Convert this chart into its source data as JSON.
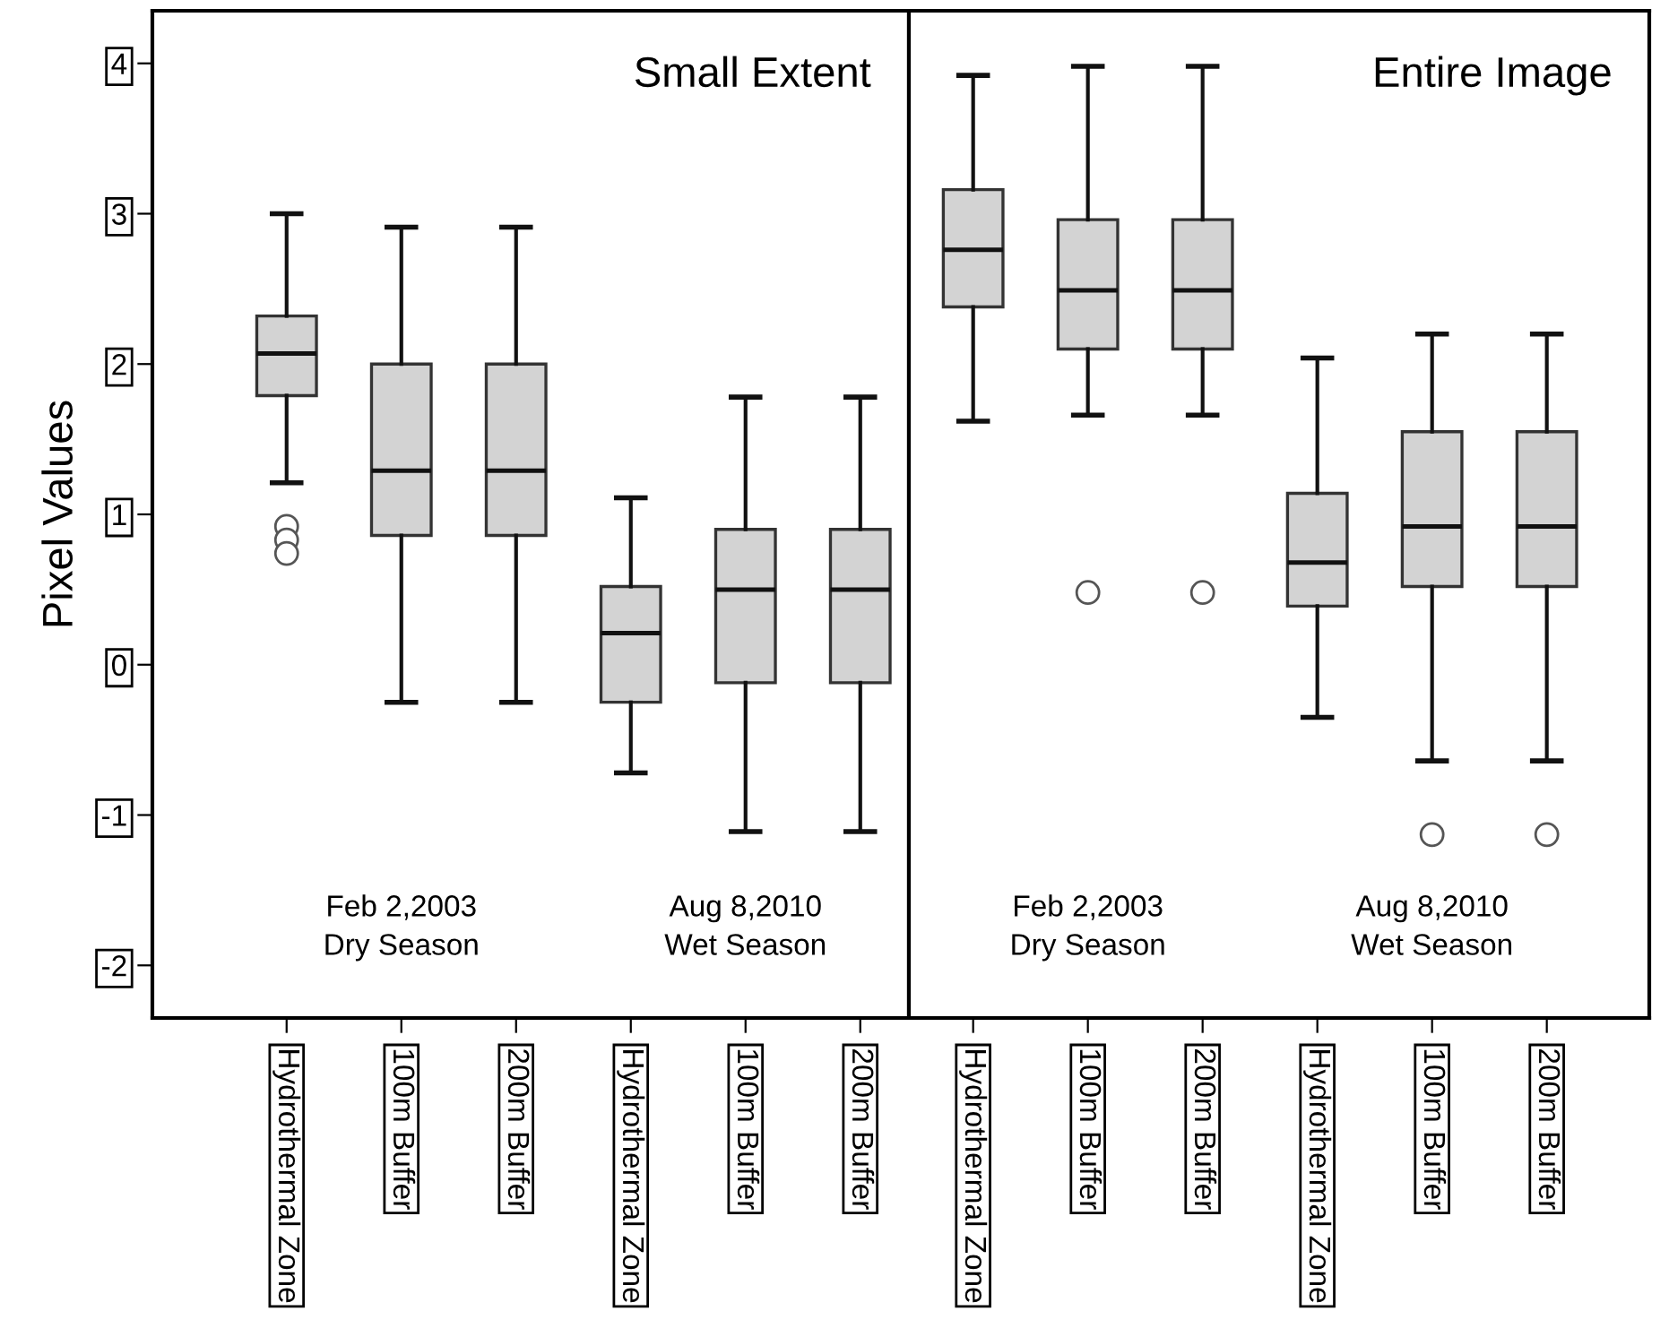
{
  "chart_data": [
    {
      "type": "box",
      "title": "Small Extent",
      "ylabel": "Pixel Values",
      "ylim": [
        -2.35,
        4.35
      ],
      "yticks": [
        -2,
        -1,
        0,
        1,
        2,
        3,
        4
      ],
      "grid": false,
      "color": "#d3d3d3",
      "categories": [
        "Hydrothermal Zone",
        "100m Buffer",
        "200m Buffer",
        "Hydrothermal Zone",
        "100m Buffer",
        "200m Buffer"
      ],
      "annotations": [
        "Feb 2,2003\nDry Season",
        "Aug 8,2010\nWet Season"
      ],
      "boxes": [
        {
          "low": 1.21,
          "q1": 1.79,
          "median": 2.07,
          "q3": 2.32,
          "high": 3.0,
          "outliers": [
            0.92,
            0.83,
            0.74
          ]
        },
        {
          "low": -0.25,
          "q1": 0.86,
          "median": 1.29,
          "q3": 2.0,
          "high": 2.91
        },
        {
          "low": -0.25,
          "q1": 0.86,
          "median": 1.29,
          "q3": 2.0,
          "high": 2.91
        },
        {
          "low": -0.72,
          "q1": -0.25,
          "median": 0.21,
          "q3": 0.52,
          "high": 1.11
        },
        {
          "low": -1.11,
          "q1": -0.12,
          "median": 0.5,
          "q3": 0.9,
          "high": 1.78
        },
        {
          "low": -1.11,
          "q1": -0.12,
          "median": 0.5,
          "q3": 0.9,
          "high": 1.78
        }
      ]
    },
    {
      "type": "box",
      "title": "Entire Image",
      "ylim": [
        -2.35,
        4.35
      ],
      "yticks": [
        -2,
        -1,
        0,
        1,
        2,
        3,
        4
      ],
      "tick_labels": "x",
      "grid": false,
      "color": "#d3d3d3",
      "categories": [
        "Hydrothermal Zone",
        "100m Buffer",
        "200m Buffer",
        "Hydrothermal Zone",
        "100m Buffer",
        "200m Buffer"
      ],
      "annotations": [
        "Feb 2,2003\nDry Season",
        "Aug 8,2010\nWet Season"
      ],
      "boxes": [
        {
          "low": 1.62,
          "q1": 2.38,
          "median": 2.76,
          "q3": 3.16,
          "high": 3.92
        },
        {
          "low": 1.66,
          "q1": 2.1,
          "median": 2.49,
          "q3": 2.96,
          "high": 3.98,
          "outliers": [
            0.48
          ]
        },
        {
          "low": 1.66,
          "q1": 2.1,
          "median": 2.49,
          "q3": 2.96,
          "high": 3.98,
          "outliers": [
            0.48
          ]
        },
        {
          "low": -0.35,
          "q1": 0.39,
          "median": 0.68,
          "q3": 1.14,
          "high": 2.04
        },
        {
          "low": -0.64,
          "q1": 0.52,
          "median": 0.92,
          "q3": 1.55,
          "high": 2.2,
          "outliers": [
            -1.13
          ]
        },
        {
          "low": -0.64,
          "q1": 0.52,
          "median": 0.92,
          "q3": 1.55,
          "high": 2.2,
          "outliers": [
            -1.13
          ]
        }
      ]
    }
  ]
}
